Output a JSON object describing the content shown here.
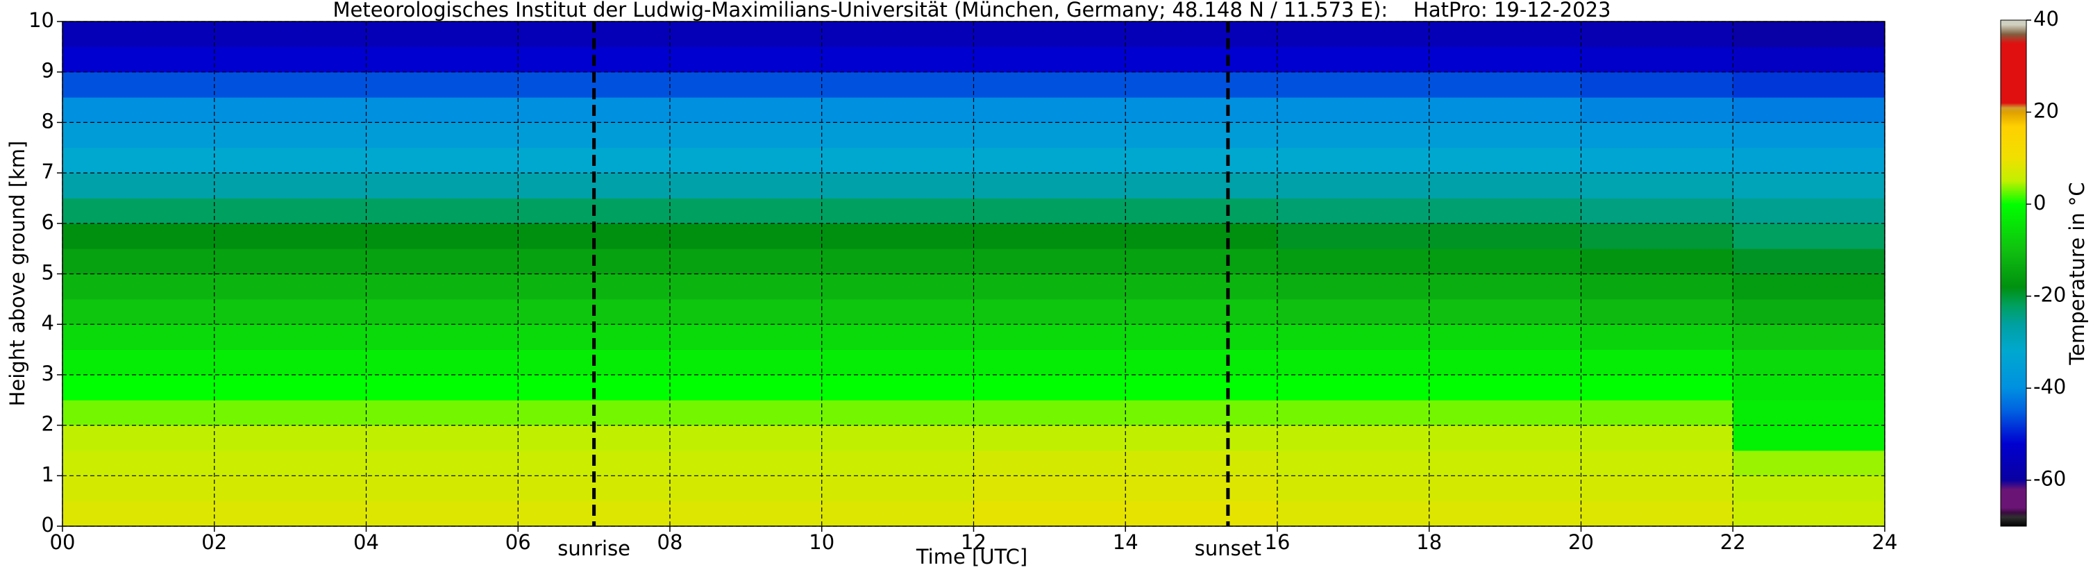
{
  "chart_data": {
    "type": "heatmap",
    "title": "Meteorologisches Institut der Ludwig-Maximilians-Universität (München, Germany; 48.148 N / 11.573 E):    HatPro: 19-12-2023",
    "x_label": "Time [UTC]",
    "y_label": "Height above ground [km]",
    "colorbar_label": "Temperature in °C",
    "xbins": [
      0,
      2,
      4,
      6,
      8,
      10,
      12,
      14,
      16,
      18,
      20,
      22,
      24
    ],
    "ybins": [
      0,
      0.5,
      1,
      1.5,
      2,
      2.5,
      3,
      3.5,
      4,
      4.5,
      5,
      5.5,
      6,
      6.5,
      7,
      7.5,
      8,
      8.5,
      9,
      9.5,
      10
    ],
    "values": [
      [
        8,
        8,
        8,
        8,
        8,
        8,
        9,
        9,
        8,
        8,
        8,
        6
      ],
      [
        7,
        7,
        7,
        7,
        7,
        7,
        8,
        8,
        7,
        7,
        7,
        5
      ],
      [
        6,
        6,
        6,
        6,
        6,
        6,
        7,
        7,
        6,
        6,
        6,
        4
      ],
      [
        5,
        5,
        5,
        5,
        5,
        5,
        5,
        5,
        5,
        5,
        5,
        -2
      ],
      [
        3,
        3,
        3,
        3,
        3,
        3,
        3,
        3,
        3,
        3,
        3,
        -3
      ],
      [
        0,
        0,
        0,
        0,
        0,
        0,
        0,
        0,
        0,
        0,
        0,
        -4
      ],
      [
        -3,
        -3,
        -3,
        -3,
        -3,
        -3,
        -3,
        -3,
        -3,
        -3,
        -3,
        -6
      ],
      [
        -6,
        -6,
        -6,
        -6,
        -6,
        -6,
        -6,
        -6,
        -6,
        -6,
        -7,
        -9
      ],
      [
        -9,
        -9,
        -9,
        -9,
        -9,
        -9,
        -9,
        -9,
        -10,
        -10,
        -11,
        -13
      ],
      [
        -12,
        -12,
        -12,
        -12,
        -12,
        -12,
        -12,
        -12,
        -13,
        -13,
        -14,
        -16
      ],
      [
        -15,
        -15,
        -15,
        -15,
        -15,
        -15,
        -15,
        -15,
        -16,
        -16,
        -17,
        -19
      ],
      [
        -18,
        -18,
        -18,
        -18,
        -18,
        -18,
        -18,
        -18,
        -19,
        -19,
        -20,
        -22
      ],
      [
        -22,
        -22,
        -22,
        -22,
        -22,
        -22,
        -22,
        -22,
        -23,
        -23,
        -24,
        -25
      ],
      [
        -27,
        -27,
        -27,
        -27,
        -27,
        -27,
        -27,
        -27,
        -27,
        -27,
        -28,
        -29
      ],
      [
        -32,
        -32,
        -32,
        -32,
        -32,
        -32,
        -32,
        -32,
        -32,
        -32,
        -33,
        -34
      ],
      [
        -36,
        -36,
        -36,
        -36,
        -36,
        -36,
        -36,
        -36,
        -36,
        -36,
        -37,
        -38
      ],
      [
        -40,
        -40,
        -40,
        -40,
        -40,
        -40,
        -40,
        -40,
        -40,
        -40,
        -41,
        -42
      ],
      [
        -46,
        -46,
        -46,
        -46,
        -46,
        -46,
        -46,
        -46,
        -46,
        -46,
        -47,
        -48
      ],
      [
        -52,
        -52,
        -52,
        -52,
        -52,
        -52,
        -52,
        -52,
        -52,
        -52,
        -53,
        -54
      ],
      [
        -56,
        -56,
        -56,
        -56,
        -56,
        -56,
        -56,
        -56,
        -56,
        -56,
        -57,
        -59
      ]
    ],
    "xlim": [
      0,
      24
    ],
    "ylim": [
      0,
      10
    ],
    "xticks": [
      {
        "value": 0,
        "label": "00"
      },
      {
        "value": 2,
        "label": "02"
      },
      {
        "value": 4,
        "label": "04"
      },
      {
        "value": 6,
        "label": "06"
      },
      {
        "value": 8,
        "label": "08"
      },
      10,
      12,
      14,
      16,
      18,
      20,
      22,
      24
    ],
    "yticks": [
      0,
      1,
      2,
      3,
      4,
      5,
      6,
      7,
      8,
      9,
      10
    ],
    "grid": true,
    "clim": [
      -70,
      40
    ],
    "cticks": [
      -60,
      -40,
      -20,
      0,
      20,
      40
    ],
    "colorscale": [
      {
        "value": -70,
        "color": "#000000"
      },
      {
        "value": -68,
        "color": "#303030"
      },
      {
        "value": -67,
        "color": "#3a0a40"
      },
      {
        "value": -66,
        "color": "#6a1575"
      },
      {
        "value": -62,
        "color": "#6a1575"
      },
      {
        "value": -60,
        "color": "#0a00a0"
      },
      {
        "value": -52,
        "color": "#0000d0"
      },
      {
        "value": -45,
        "color": "#0060e0"
      },
      {
        "value": -40,
        "color": "#0090e0"
      },
      {
        "value": -32,
        "color": "#00a8d0"
      },
      {
        "value": -26,
        "color": "#00a0a0"
      },
      {
        "value": -22,
        "color": "#00a060"
      },
      {
        "value": -18,
        "color": "#009010"
      },
      {
        "value": -10,
        "color": "#10c010"
      },
      {
        "value": 0,
        "color": "#00ff00"
      },
      {
        "value": 5,
        "color": "#c0f000"
      },
      {
        "value": 10,
        "color": "#f0e000"
      },
      {
        "value": 17,
        "color": "#ffd000"
      },
      {
        "value": 20,
        "color": "#e0a000"
      },
      {
        "value": 21,
        "color": "#d0a030"
      },
      {
        "value": 22,
        "color": "#e01010"
      },
      {
        "value": 35,
        "color": "#e01010"
      },
      {
        "value": 37,
        "color": "#806040"
      },
      {
        "value": 39,
        "color": "#d0d0c0"
      },
      {
        "value": 40,
        "color": "#d0d0c0"
      }
    ],
    "annotations": [
      {
        "x": 7.0,
        "label": "sunrise"
      },
      {
        "x": 15.35,
        "label": "sunset"
      }
    ]
  }
}
